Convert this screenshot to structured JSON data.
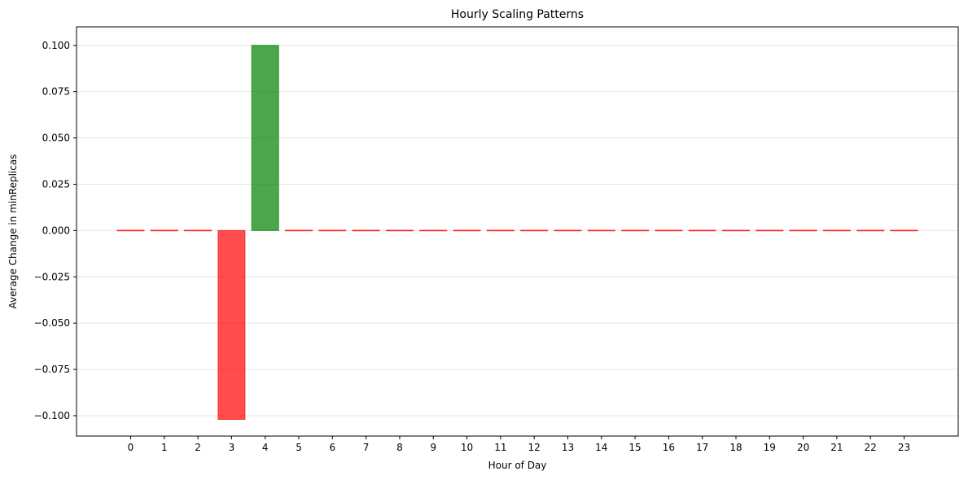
{
  "chart_data": {
    "type": "bar",
    "title": "Hourly Scaling Patterns",
    "xlabel": "Hour of Day",
    "ylabel": "Average Change in minReplicas",
    "categories": [
      "0",
      "1",
      "2",
      "3",
      "4",
      "5",
      "6",
      "7",
      "8",
      "9",
      "10",
      "11",
      "12",
      "13",
      "14",
      "15",
      "16",
      "17",
      "18",
      "19",
      "20",
      "21",
      "22",
      "23"
    ],
    "values": [
      0,
      0,
      0,
      -0.102,
      0.1,
      0,
      0,
      0,
      0,
      0,
      0,
      0,
      0,
      0,
      0,
      0,
      0,
      0,
      0,
      0,
      0,
      0,
      0,
      0
    ],
    "ylim": [
      -0.111,
      0.11
    ],
    "yticks": [
      -0.1,
      -0.075,
      -0.05,
      -0.025,
      0.0,
      0.025,
      0.05,
      0.075,
      0.1
    ],
    "ytick_labels": [
      "−0.100",
      "−0.075",
      "−0.050",
      "−0.025",
      "0.000",
      "0.025",
      "0.050",
      "0.075",
      "0.100"
    ],
    "grid": "y",
    "colors": {
      "positive": "#008000",
      "negative": "#ff0000",
      "grid": "#e6e6e6",
      "axis": "#000000"
    },
    "bar_alpha": 0.7
  }
}
